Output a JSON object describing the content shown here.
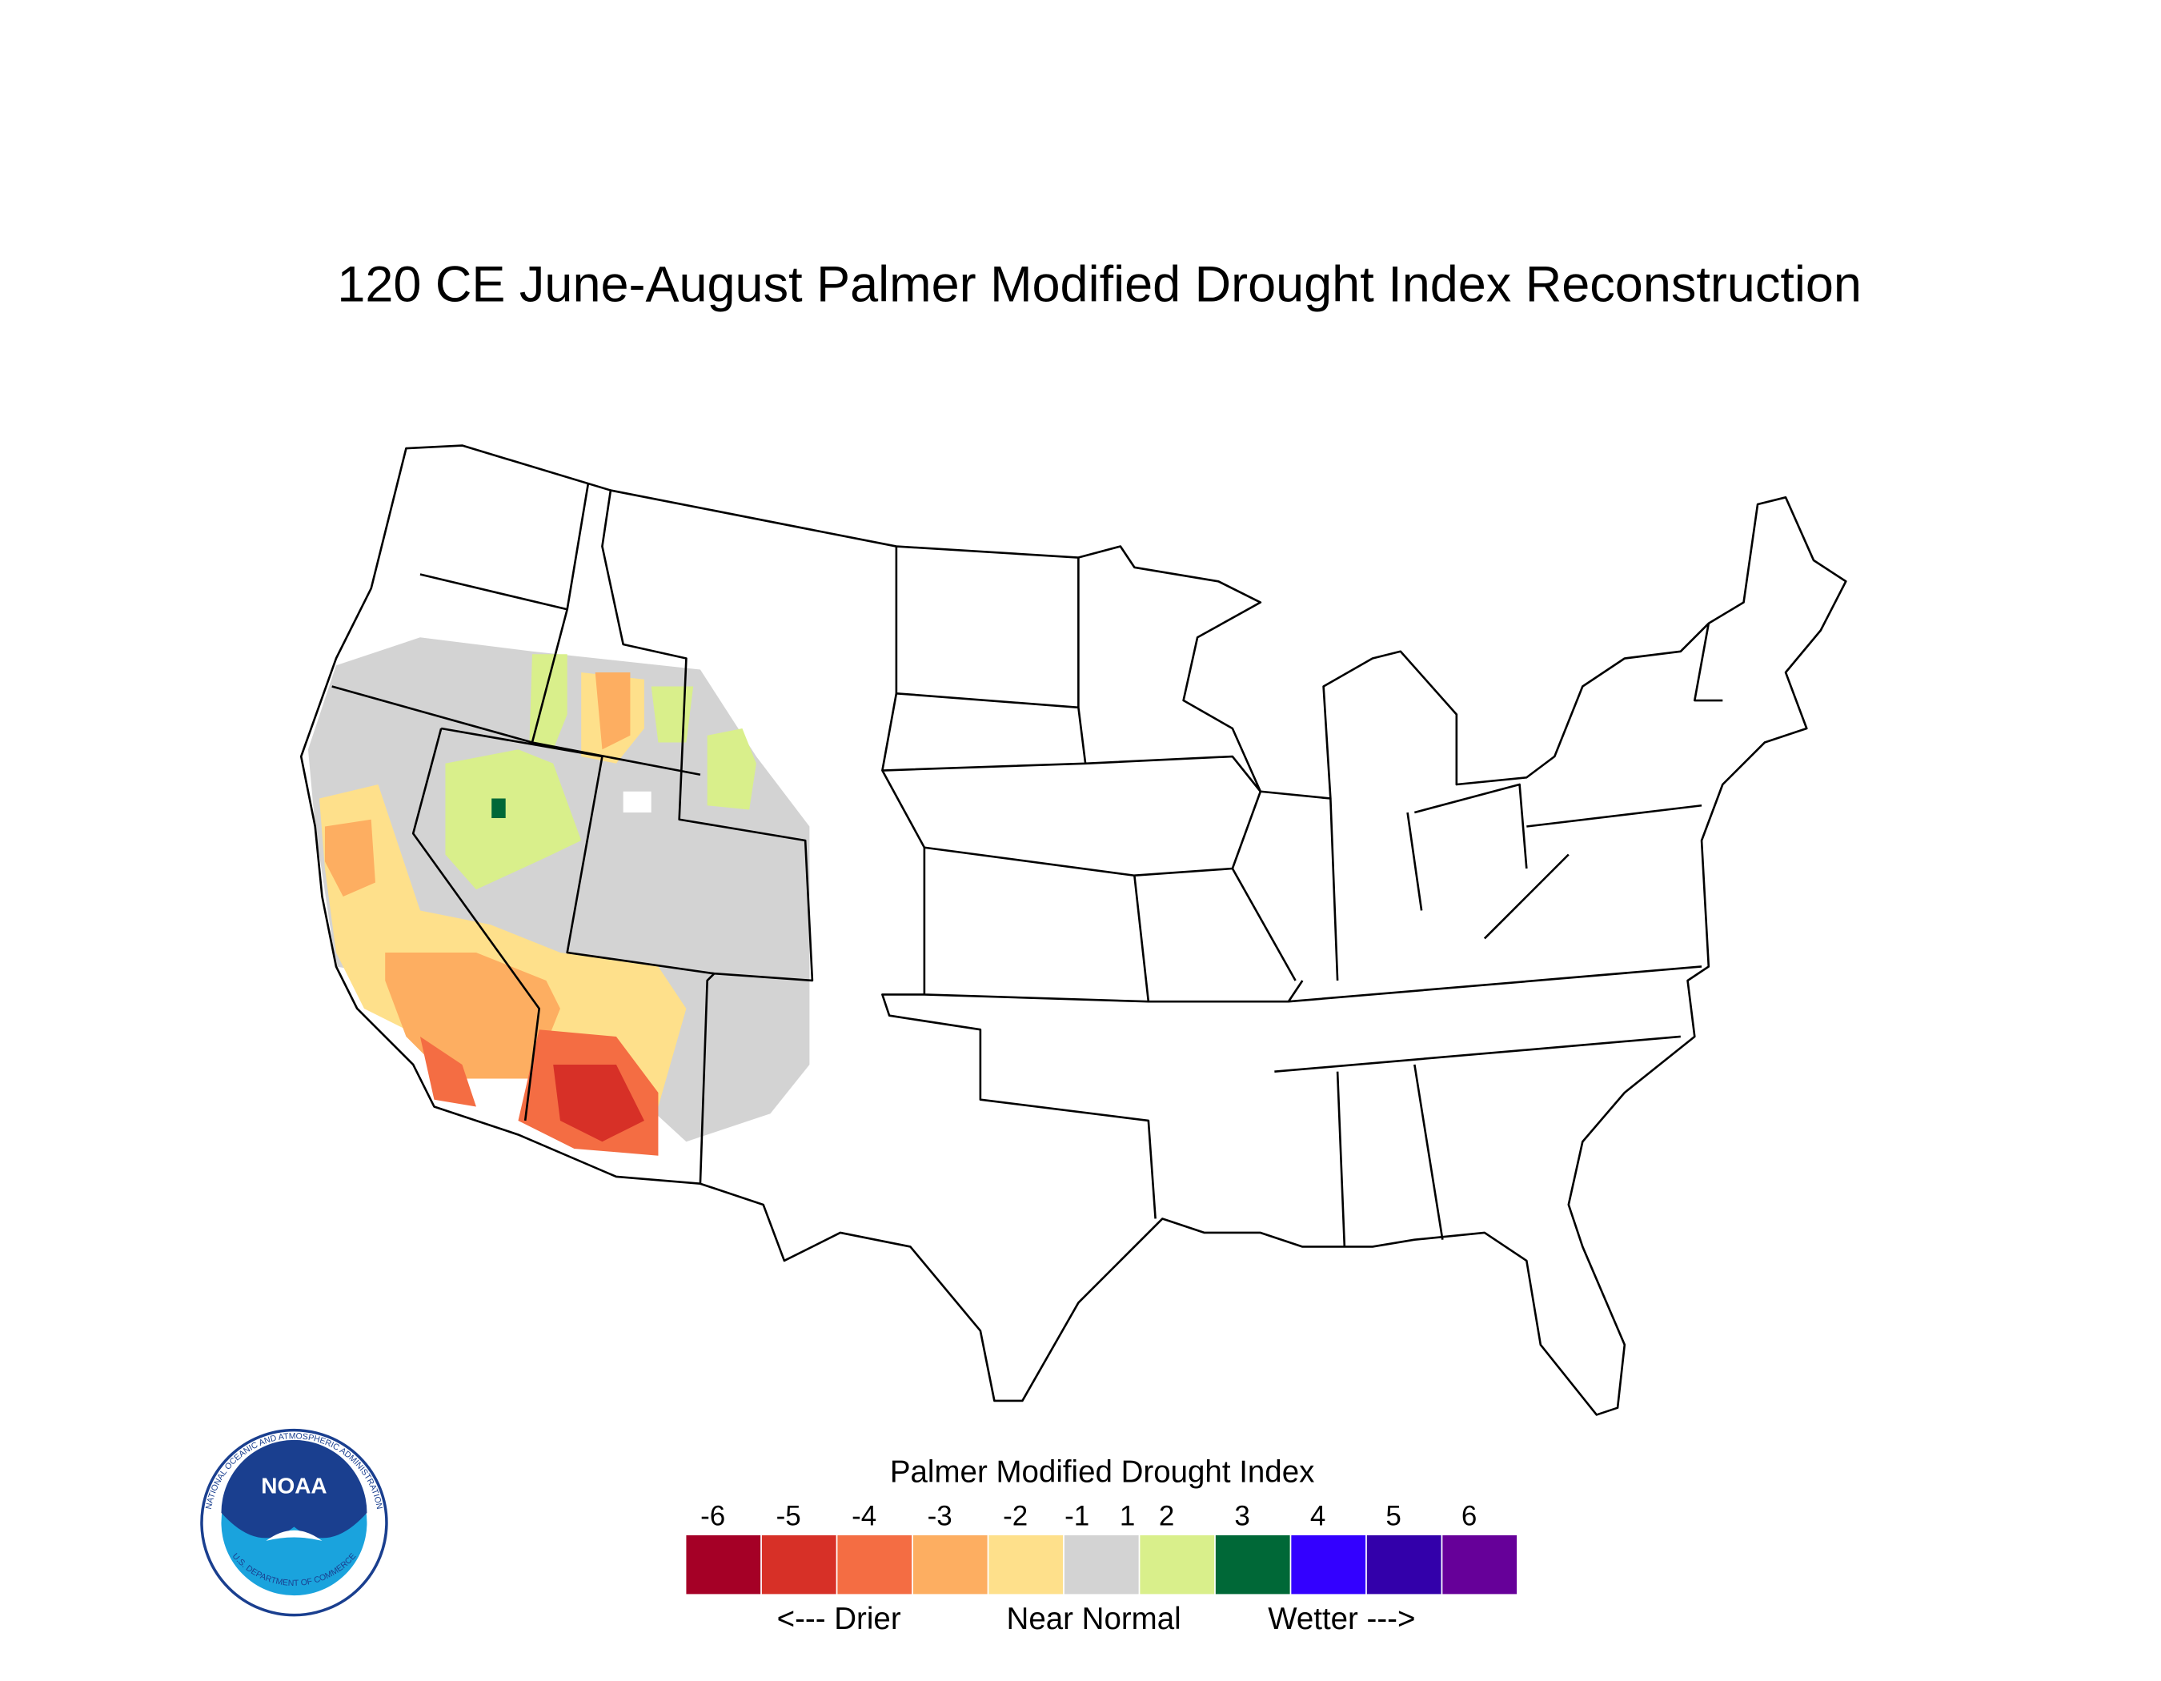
{
  "title": "120 CE  June-August  Palmer Modified Drought Index Reconstruction",
  "legend": {
    "title": "Palmer Modified Drought Index",
    "ticks": [
      -6,
      -5,
      -4,
      -3,
      -2,
      -1,
      1,
      2,
      3,
      4,
      5,
      6
    ],
    "colors": [
      "#a50026",
      "#d73027",
      "#f46d43",
      "#fdae61",
      "#fee08b",
      "#d3d3d3",
      "#d9ef8b",
      "#006837",
      "#3300ff",
      "#3300aa",
      "#660099"
    ],
    "annotations": [
      "<--- Drier",
      "Near Normal",
      "Wetter --->"
    ]
  },
  "logo": {
    "text": "NOAA",
    "ring_top": "NATIONAL OCEANIC AND ATMOSPHERIC ADMINISTRATION",
    "ring_bottom": "U.S. DEPARTMENT OF COMMERCE"
  }
}
